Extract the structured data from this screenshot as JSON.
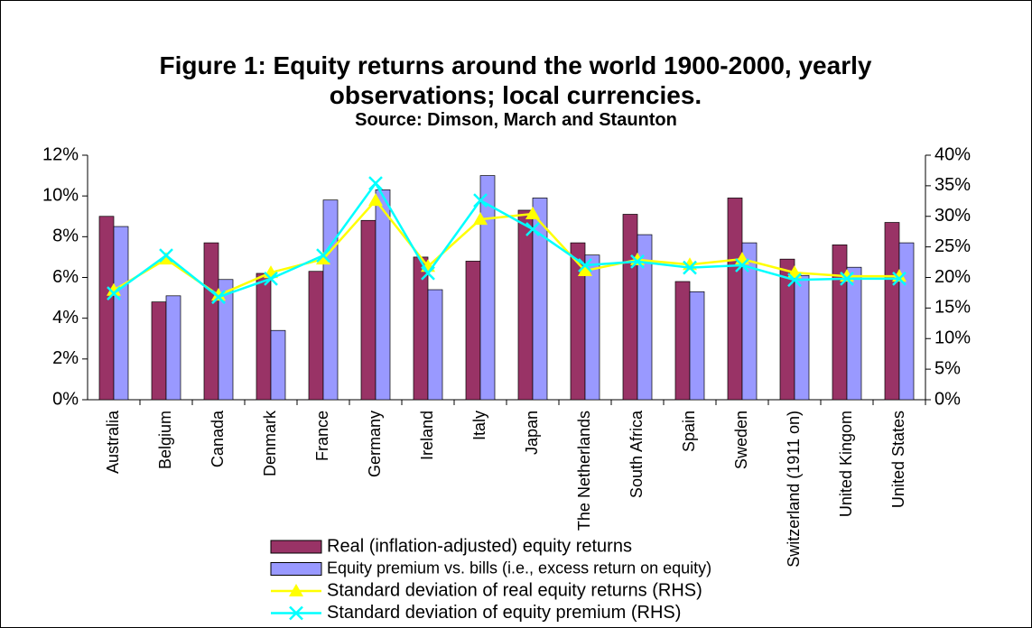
{
  "chart_data": {
    "type": "bar_line",
    "title": "Figure 1: Equity returns around the world 1900-2000, yearly observations; local currencies.",
    "subtitle": "Source: Dimson, March and Staunton",
    "categories": [
      "Australia",
      "Belgium",
      "Canada",
      "Denmark",
      "France",
      "Germany",
      "Ireland",
      "Italy",
      "Japan",
      "The Netherlands",
      "South Africa",
      "Spain",
      "Sweden",
      "Switzerland (1911 on)",
      "United Kingom",
      "United States"
    ],
    "series": [
      {
        "name": "Real (inflation-adjusted) equity returns",
        "kind": "bar",
        "color": "#993366",
        "values": [
          9.0,
          4.8,
          7.7,
          6.2,
          6.3,
          8.8,
          7.0,
          6.8,
          9.3,
          7.7,
          9.1,
          5.8,
          9.9,
          6.9,
          7.6,
          8.7
        ]
      },
      {
        "name": "Equity premium vs. bills (i.e., excess return on equity)",
        "kind": "bar",
        "color": "#9999ff",
        "values": [
          8.5,
          5.1,
          5.9,
          3.4,
          9.8,
          10.3,
          5.4,
          11.0,
          9.9,
          7.1,
          8.1,
          5.3,
          7.7,
          6.1,
          6.5,
          7.7
        ]
      },
      {
        "name": "Standard deviation of real equity returns (RHS)",
        "kind": "line",
        "marker": "triangle",
        "axis": "y2",
        "color": "#ffff00",
        "values": [
          17.9,
          23.0,
          17.1,
          20.8,
          23.0,
          32.6,
          21.8,
          29.5,
          30.4,
          21.1,
          22.9,
          22.1,
          23.0,
          20.8,
          20.2,
          20.2
        ]
      },
      {
        "name": "Standard deviation of equity premium (RHS)",
        "kind": "line",
        "marker": "x",
        "axis": "y2",
        "color": "#00ffff",
        "values": [
          17.4,
          23.6,
          16.8,
          19.8,
          23.6,
          35.4,
          20.7,
          32.6,
          27.9,
          22.0,
          22.6,
          21.6,
          22.0,
          19.6,
          19.8,
          19.8
        ]
      }
    ],
    "ylim": [
      0,
      12
    ],
    "yticks": [
      {
        "value": 0,
        "label": "0%"
      },
      {
        "value": 2,
        "label": "2%"
      },
      {
        "value": 4,
        "label": "4%"
      },
      {
        "value": 6,
        "label": "6%"
      },
      {
        "value": 8,
        "label": "8%"
      },
      {
        "value": 10,
        "label": "10%"
      },
      {
        "value": 12,
        "label": "12%"
      }
    ],
    "y2lim": [
      0,
      40
    ],
    "y2ticks": [
      {
        "value": 0,
        "label": "0%"
      },
      {
        "value": 5,
        "label": "5%"
      },
      {
        "value": 10,
        "label": "10%"
      },
      {
        "value": 15,
        "label": "15%"
      },
      {
        "value": 20,
        "label": "20%"
      },
      {
        "value": 25,
        "label": "25%"
      },
      {
        "value": 30,
        "label": "30%"
      },
      {
        "value": 35,
        "label": "35%"
      },
      {
        "value": 40,
        "label": "40%"
      }
    ],
    "grid": false,
    "legend": "bottom"
  }
}
